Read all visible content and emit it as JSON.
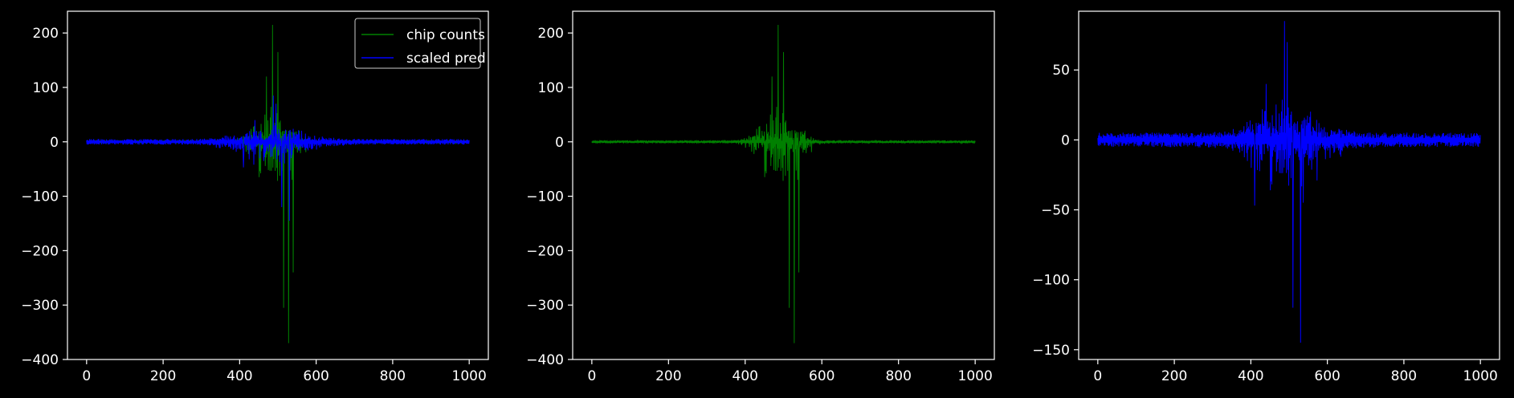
{
  "figure": {
    "background": "#000000",
    "foreground": "#ffffff"
  },
  "chart_data": [
    {
      "type": "line",
      "xlim": [
        -50,
        1050
      ],
      "ylim": [
        -400,
        240
      ],
      "x_ticks": [
        0,
        200,
        400,
        600,
        800,
        1000
      ],
      "y_ticks": [
        -400,
        -300,
        -200,
        -100,
        0,
        100,
        200
      ],
      "x_tick_labels": [
        "0",
        "200",
        "400",
        "600",
        "800",
        "1000"
      ],
      "y_tick_labels": [
        "−400",
        "−300",
        "−200",
        "−100",
        "0",
        "100",
        "200"
      ],
      "grid": false,
      "legend": {
        "placement": "top-right",
        "entries": [
          {
            "label": "chip counts",
            "color": "#008000"
          },
          {
            "label": "scaled pred",
            "color": "#0000ff"
          }
        ]
      },
      "series": [
        {
          "name": "chip counts",
          "color": "#008000",
          "x_range": [
            0,
            1000
          ],
          "peak_index": 490,
          "spread": 60,
          "envelope_top": 215,
          "envelope_bottom": -370,
          "baseline_noise": 2,
          "highlights": [
            [
              486,
              215
            ],
            [
              528,
              -370
            ],
            [
              515,
              -305
            ],
            [
              500,
              165
            ],
            [
              540,
              -240
            ],
            [
              470,
              120
            ]
          ]
        },
        {
          "name": "scaled pred",
          "color": "#0000ff",
          "x_range": [
            0,
            1000
          ],
          "peak_index": 490,
          "spread": 110,
          "envelope_top": 85,
          "envelope_bottom": -145,
          "baseline_noise": 4,
          "highlights": [
            [
              488,
              85
            ],
            [
              530,
              -145
            ],
            [
              510,
              -120
            ],
            [
              495,
              70
            ],
            [
              410,
              -47
            ],
            [
              440,
              40
            ]
          ]
        }
      ]
    },
    {
      "type": "line",
      "xlim": [
        -50,
        1050
      ],
      "ylim": [
        -400,
        240
      ],
      "x_ticks": [
        0,
        200,
        400,
        600,
        800,
        1000
      ],
      "y_ticks": [
        -400,
        -300,
        -200,
        -100,
        0,
        100,
        200
      ],
      "x_tick_labels": [
        "0",
        "200",
        "400",
        "600",
        "800",
        "1000"
      ],
      "y_tick_labels": [
        "−400",
        "−300",
        "−200",
        "−100",
        "0",
        "100",
        "200"
      ],
      "grid": false,
      "series": [
        {
          "color": "#008000",
          "x_range": [
            0,
            1000
          ],
          "peak_index": 490,
          "spread": 60,
          "envelope_top": 215,
          "envelope_bottom": -370,
          "baseline_noise": 2,
          "highlights": [
            [
              486,
              215
            ],
            [
              528,
              -370
            ],
            [
              515,
              -305
            ],
            [
              500,
              165
            ],
            [
              540,
              -240
            ],
            [
              470,
              120
            ]
          ]
        }
      ]
    },
    {
      "type": "line",
      "xlim": [
        -50,
        1050
      ],
      "ylim": [
        -157,
        92
      ],
      "x_ticks": [
        0,
        200,
        400,
        600,
        800,
        1000
      ],
      "y_ticks": [
        -150,
        -100,
        -50,
        0,
        50
      ],
      "x_tick_labels": [
        "0",
        "200",
        "400",
        "600",
        "800",
        "1000"
      ],
      "y_tick_labels": [
        "−150",
        "−100",
        "−50",
        "0",
        "50"
      ],
      "grid": false,
      "series": [
        {
          "color": "#0000ff",
          "x_range": [
            0,
            1000
          ],
          "peak_index": 490,
          "spread": 110,
          "envelope_top": 85,
          "envelope_bottom": -145,
          "baseline_noise": 4,
          "highlights": [
            [
              488,
              85
            ],
            [
              530,
              -145
            ],
            [
              510,
              -120
            ],
            [
              495,
              70
            ],
            [
              410,
              -47
            ],
            [
              440,
              40
            ]
          ]
        }
      ]
    }
  ]
}
